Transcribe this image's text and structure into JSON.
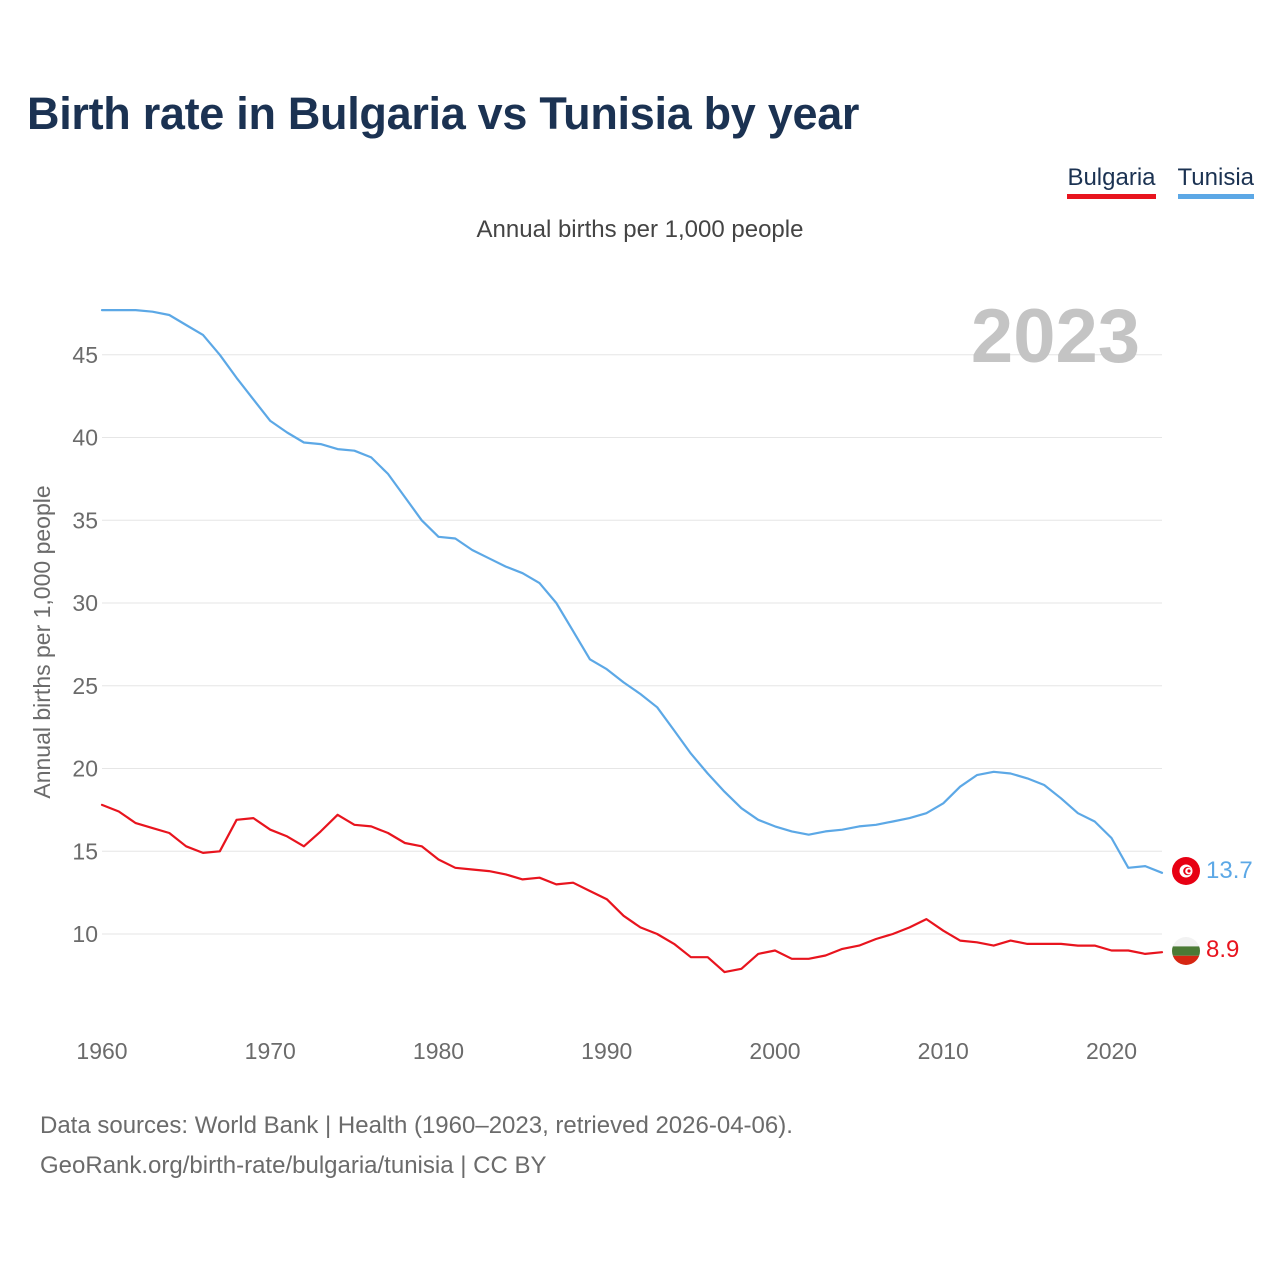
{
  "header": {
    "title": "Birth rate in Bulgaria vs Tunisia by year",
    "subtitle": "Annual births per 1,000 people"
  },
  "legend": [
    {
      "label": "Bulgaria",
      "color": "#e8141e"
    },
    {
      "label": "Tunisia",
      "color": "#5ca8e6"
    }
  ],
  "footer": {
    "line1": "Data sources: World Bank | Health (1960–2023, retrieved 2026-04-06).",
    "line2": "GeoRank.org/birth-rate/bulgaria/tunisia | CC BY"
  },
  "chart_data": {
    "type": "line",
    "title": "Birth rate in Bulgaria vs Tunisia by year",
    "subtitle": "Annual births per 1,000 people",
    "xlabel": "",
    "ylabel": "Annual births per 1,000 people",
    "year_label": "2023",
    "xlim": [
      1960,
      2023
    ],
    "ylim": [
      5,
      48
    ],
    "x_ticks": [
      1960,
      1970,
      1980,
      1990,
      2000,
      2010,
      2020
    ],
    "y_ticks": [
      10,
      15,
      20,
      25,
      30,
      35,
      40,
      45
    ],
    "grid": true,
    "legend_position": "top-right",
    "x": [
      1960,
      1961,
      1962,
      1963,
      1964,
      1965,
      1966,
      1967,
      1968,
      1969,
      1970,
      1971,
      1972,
      1973,
      1974,
      1975,
      1976,
      1977,
      1978,
      1979,
      1980,
      1981,
      1982,
      1983,
      1984,
      1985,
      1986,
      1987,
      1988,
      1989,
      1990,
      1991,
      1992,
      1993,
      1994,
      1995,
      1996,
      1997,
      1998,
      1999,
      2000,
      2001,
      2002,
      2003,
      2004,
      2005,
      2006,
      2007,
      2008,
      2009,
      2010,
      2011,
      2012,
      2013,
      2014,
      2015,
      2016,
      2017,
      2018,
      2019,
      2020,
      2021,
      2022,
      2023
    ],
    "series": [
      {
        "name": "Bulgaria",
        "color": "#e8141e",
        "end_label": "8.9",
        "values": [
          17.8,
          17.4,
          16.7,
          16.4,
          16.1,
          15.3,
          14.9,
          15.0,
          16.9,
          17.0,
          16.3,
          15.9,
          15.3,
          16.2,
          17.2,
          16.6,
          16.5,
          16.1,
          15.5,
          15.3,
          14.5,
          14.0,
          13.9,
          13.8,
          13.6,
          13.3,
          13.4,
          13.0,
          13.1,
          12.6,
          12.1,
          11.1,
          10.4,
          10.0,
          9.4,
          8.6,
          8.6,
          7.7,
          7.9,
          8.8,
          9.0,
          8.5,
          8.5,
          8.7,
          9.1,
          9.3,
          9.7,
          10.0,
          10.4,
          10.9,
          10.2,
          9.6,
          9.5,
          9.3,
          9.6,
          9.4,
          9.4,
          9.4,
          9.3,
          9.3,
          9.0,
          9.0,
          8.8,
          8.9
        ]
      },
      {
        "name": "Tunisia",
        "color": "#5ca8e6",
        "end_label": "13.7",
        "values": [
          47.7,
          47.7,
          47.7,
          47.6,
          47.4,
          46.8,
          46.2,
          45.0,
          43.6,
          42.3,
          41.0,
          40.3,
          39.7,
          39.6,
          39.3,
          39.2,
          38.8,
          37.8,
          36.4,
          35.0,
          34.0,
          33.9,
          33.2,
          32.7,
          32.2,
          31.8,
          31.2,
          30.0,
          28.3,
          26.6,
          26.0,
          25.2,
          24.5,
          23.7,
          22.3,
          20.9,
          19.7,
          18.6,
          17.6,
          16.9,
          16.5,
          16.2,
          16.0,
          16.2,
          16.3,
          16.5,
          16.6,
          16.8,
          17.0,
          17.3,
          17.9,
          18.9,
          19.6,
          19.8,
          19.7,
          19.4,
          19.0,
          18.2,
          17.3,
          16.8,
          15.8,
          14.0,
          14.1,
          13.7
        ]
      }
    ]
  }
}
